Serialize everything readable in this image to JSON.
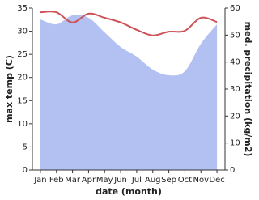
{
  "chart_data": {
    "type": "line",
    "categories": [
      "Jan",
      "Feb",
      "Mar",
      "Apr",
      "May",
      "Jun",
      "Jul",
      "Aug",
      "Sep",
      "Oct",
      "Nov",
      "Dec"
    ],
    "x_label": "date (month)",
    "y_label": "max temp (C)",
    "y2_label": "med. precipitation (kg/m2)",
    "ylim": [
      0,
      35
    ],
    "yticks": [
      0,
      5,
      10,
      15,
      20,
      25,
      30,
      35
    ],
    "y2lim": [
      0,
      60
    ],
    "y2ticks": [
      0,
      10,
      20,
      30,
      40,
      50,
      60
    ],
    "series": [
      {
        "name": "med. precipitation",
        "type": "area",
        "axis": "y2",
        "color": "#b3c1f2",
        "values": [
          55.8,
          54,
          57.3,
          56.4,
          51,
          45.6,
          42,
          37.2,
          35.1,
          36.6,
          46.8,
          54
        ]
      },
      {
        "name": "max temp",
        "type": "line",
        "color": "#cd5257",
        "values": [
          34.1,
          34.1,
          31.9,
          33.8,
          32.9,
          31.9,
          30.3,
          29.1,
          29.9,
          30.1,
          32.9,
          32.0
        ]
      }
    ]
  }
}
